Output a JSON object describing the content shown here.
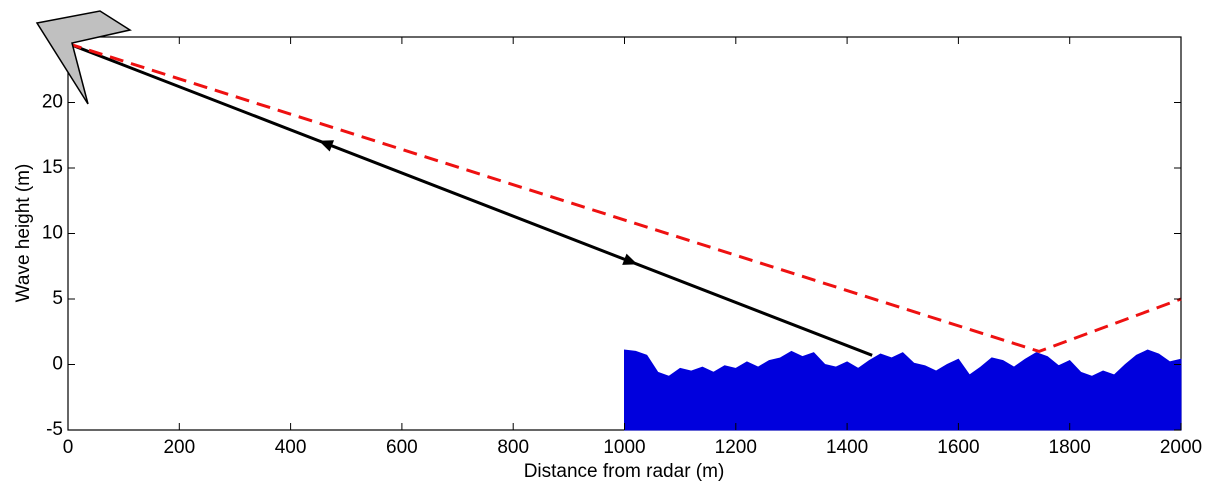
{
  "chart_data": {
    "type": "line",
    "xlabel": "Distance from radar (m)",
    "ylabel": "Wave height (m)",
    "xlim": [
      0,
      2000
    ],
    "xticks": [
      0,
      200,
      400,
      600,
      800,
      1000,
      1200,
      1400,
      1600,
      1800,
      2000
    ],
    "ylim": [
      -5,
      25
    ],
    "yticks": [
      -5,
      0,
      5,
      10,
      15,
      20
    ],
    "series": [
      {
        "style": "area",
        "color": "#0000dd",
        "x": [
          1000,
          1020,
          1040,
          1060,
          1080,
          1100,
          1120,
          1140,
          1160,
          1180,
          1200,
          1220,
          1240,
          1260,
          1280,
          1300,
          1320,
          1340,
          1360,
          1380,
          1400,
          1420,
          1440,
          1460,
          1480,
          1500,
          1520,
          1540,
          1560,
          1580,
          1600,
          1620,
          1640,
          1660,
          1680,
          1700,
          1720,
          1740,
          1760,
          1780,
          1800,
          1820,
          1840,
          1860,
          1880,
          1900,
          1920,
          1940,
          1960,
          1980,
          2000
        ],
        "values": [
          1.1,
          1.0,
          0.7,
          -0.6,
          -0.9,
          -0.3,
          -0.5,
          -0.2,
          -0.6,
          -0.1,
          -0.3,
          0.2,
          -0.2,
          0.3,
          0.5,
          1.0,
          0.6,
          0.9,
          0.0,
          -0.2,
          0.2,
          -0.3,
          0.3,
          0.8,
          0.5,
          0.9,
          0.1,
          -0.1,
          -0.5,
          0.0,
          0.4,
          -0.8,
          -0.2,
          0.5,
          0.3,
          -0.2,
          0.4,
          0.9,
          0.6,
          -0.1,
          0.3,
          -0.6,
          -0.9,
          -0.5,
          -0.8,
          0.0,
          0.7,
          1.1,
          0.8,
          0.2,
          0.4
        ]
      },
      {
        "style": "solid",
        "color": "#000000",
        "x": [
          0,
          1445
        ],
        "values": [
          24.5,
          0.7
        ]
      },
      {
        "style": "dashed",
        "color": "#ee1111",
        "x": [
          0,
          1745,
          2000
        ],
        "values": [
          24.5,
          1.0,
          5.0
        ]
      }
    ]
  }
}
